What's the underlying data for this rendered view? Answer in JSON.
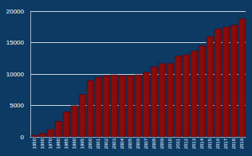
{
  "chart_data": {
    "type": "bar",
    "categories": [
      "1950",
      "1960",
      "1970",
      "1980",
      "1985",
      "1990",
      "1995",
      "2000",
      "2001",
      "2002",
      "2003",
      "2004",
      "2005",
      "2006",
      "2007",
      "2008",
      "2009",
      "2010",
      "2011",
      "2012",
      "2013",
      "2014",
      "2015",
      "2016",
      "2017",
      "2018",
      "2019"
    ],
    "values": [
      300,
      600,
      1200,
      2500,
      4000,
      5000,
      6800,
      9000,
      9500,
      9800,
      9900,
      9800,
      9800,
      9900,
      10300,
      11200,
      11700,
      11700,
      12900,
      13100,
      13700,
      14500,
      16000,
      17200,
      17500,
      17800,
      18800
    ],
    "color": "#8b0a0a",
    "ylim": [
      0,
      20000
    ],
    "yticks": [
      0,
      5000,
      10000,
      15000,
      20000
    ],
    "grid": true
  }
}
